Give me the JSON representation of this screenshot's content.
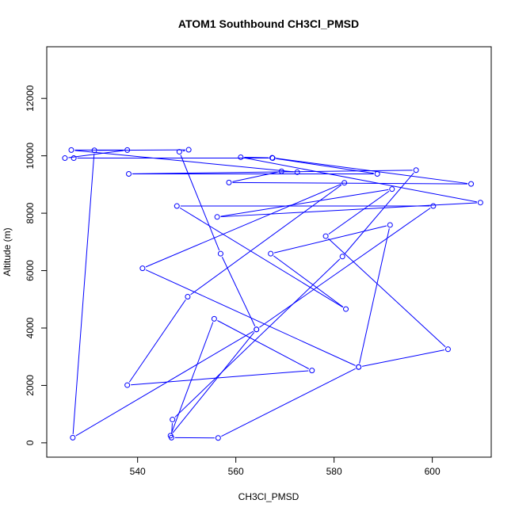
{
  "chart_data": {
    "type": "line",
    "title": "ATOM1 Southbound CH3Cl_PMSD",
    "xlabel": "CH3Cl_PMSD",
    "ylabel": "Altitude (m)",
    "xlim": [
      521.5,
      612
    ],
    "ylim": [
      -500,
      13800
    ],
    "xticks": [
      540,
      560,
      580,
      600
    ],
    "yticks": [
      0,
      2000,
      4000,
      6000,
      8000,
      10000,
      12000
    ],
    "grid": false,
    "series": [
      {
        "color": "#0000ff",
        "points": [
          [
            527.0,
            9920
          ],
          [
            567.5,
            9920
          ],
          [
            588.8,
            9370
          ],
          [
            538.2,
            9370
          ],
          [
            596.7,
            9500
          ],
          [
            581.7,
            6490
          ],
          [
            547.1,
            810
          ],
          [
            546.9,
            180
          ],
          [
            556.4,
            170
          ],
          [
            585.0,
            2640
          ],
          [
            541.0,
            6080
          ],
          [
            582.1,
            9060
          ],
          [
            550.2,
            5090
          ],
          [
            537.9,
            2010
          ],
          [
            575.5,
            2520
          ],
          [
            555.6,
            4320
          ],
          [
            546.7,
            250
          ],
          [
            564.2,
            3950
          ],
          [
            556.9,
            6590
          ],
          [
            548.5,
            10140
          ],
          [
            550.4,
            10210
          ],
          [
            531.2,
            10190
          ],
          [
            526.8,
            180
          ],
          [
            564.2,
            3950
          ],
          [
            600.2,
            8250
          ],
          [
            548.0,
            8250
          ],
          [
            582.4,
            4660
          ],
          [
            567.1,
            6590
          ],
          [
            591.4,
            7590
          ],
          [
            585.0,
            2640
          ],
          [
            603.2,
            3260
          ],
          [
            578.3,
            7200
          ],
          [
            591.8,
            8840
          ],
          [
            556.2,
            7870
          ],
          [
            609.8,
            8370
          ],
          [
            561.0,
            9950
          ],
          [
            567.4,
            9930
          ],
          [
            607.9,
            9020
          ],
          [
            558.6,
            9070
          ],
          [
            569.3,
            9460
          ],
          [
            572.5,
            9430
          ],
          [
            526.5,
            10200
          ],
          [
            537.9,
            10200
          ],
          [
            525.2,
            9920
          ]
        ]
      }
    ]
  }
}
